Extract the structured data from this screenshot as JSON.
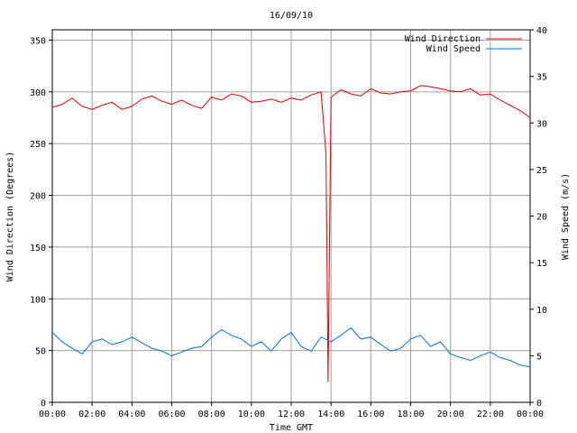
{
  "chart_data": {
    "type": "line",
    "title": "16/09/10",
    "xlabel": "Time GMT",
    "ylabel_left": "Wind Direction (Degrees)",
    "ylabel_right": "Wind Speed (m/s)",
    "x_ticks": [
      "00:00",
      "02:00",
      "04:00",
      "06:00",
      "08:00",
      "10:00",
      "12:00",
      "14:00",
      "16:00",
      "18:00",
      "20:00",
      "22:00",
      "00:00"
    ],
    "x_range_hours": [
      0,
      24
    ],
    "y_left_ticks": [
      0,
      50,
      100,
      150,
      200,
      250,
      300,
      350
    ],
    "y_left_range": [
      0,
      360
    ],
    "y_right_ticks": [
      0,
      5,
      10,
      15,
      20,
      25,
      30,
      35,
      40
    ],
    "y_right_range": [
      0,
      40
    ],
    "grid": true,
    "legend_position": "top-right",
    "series": [
      {
        "name": "Wind Direction",
        "axis": "left",
        "color": "#e00000",
        "x_hours": [
          0,
          0.5,
          1,
          1.5,
          2,
          2.5,
          3,
          3.5,
          4,
          4.5,
          5,
          5.5,
          6,
          6.5,
          7,
          7.5,
          8,
          8.5,
          9,
          9.5,
          10,
          10.5,
          11,
          11.5,
          12,
          12.5,
          13,
          13.5,
          13.75,
          13.85,
          14,
          14.5,
          15,
          15.5,
          16,
          16.5,
          17,
          17.5,
          18,
          18.5,
          19,
          19.5,
          20,
          20.5,
          21,
          21.5,
          22,
          22.5,
          23,
          23.5,
          24
        ],
        "values": [
          285,
          288,
          294,
          286,
          283,
          287,
          290,
          283,
          286,
          293,
          296,
          291,
          288,
          292,
          287,
          284,
          295,
          292,
          298,
          296,
          290,
          291,
          293,
          290,
          294,
          292,
          297,
          300,
          240,
          20,
          295,
          302,
          298,
          296,
          303,
          299,
          298,
          300,
          301,
          306,
          305,
          303,
          301,
          300,
          303,
          297,
          298,
          292,
          287,
          282,
          275
        ]
      },
      {
        "name": "Wind Speed",
        "axis": "right",
        "color": "#0070d0",
        "x_hours": [
          0,
          0.5,
          1,
          1.5,
          2,
          2.5,
          3,
          3.5,
          4,
          4.5,
          5,
          5.5,
          6,
          6.5,
          7,
          7.5,
          8,
          8.5,
          9,
          9.5,
          10,
          10.5,
          11,
          11.5,
          12,
          12.5,
          13,
          13.5,
          14,
          14.5,
          15,
          15.5,
          16,
          16.5,
          17,
          17.5,
          18,
          18.5,
          19,
          19.5,
          20,
          20.5,
          21,
          21.5,
          22,
          22.5,
          23,
          23.5,
          24
        ],
        "values": [
          7.5,
          6.5,
          5.8,
          5.2,
          6.5,
          6.8,
          6.2,
          6.5,
          7.0,
          6.4,
          5.8,
          5.5,
          5.0,
          5.4,
          5.8,
          6.0,
          7.0,
          7.8,
          7.2,
          6.8,
          6.0,
          6.5,
          5.5,
          6.8,
          7.5,
          6.0,
          5.5,
          7.0,
          6.5,
          7.2,
          8.0,
          6.8,
          7.0,
          6.2,
          5.5,
          5.8,
          6.8,
          7.2,
          6.0,
          6.5,
          5.2,
          4.8,
          4.5,
          5.0,
          5.4,
          4.8,
          4.5,
          4.0,
          3.8
        ]
      }
    ]
  }
}
